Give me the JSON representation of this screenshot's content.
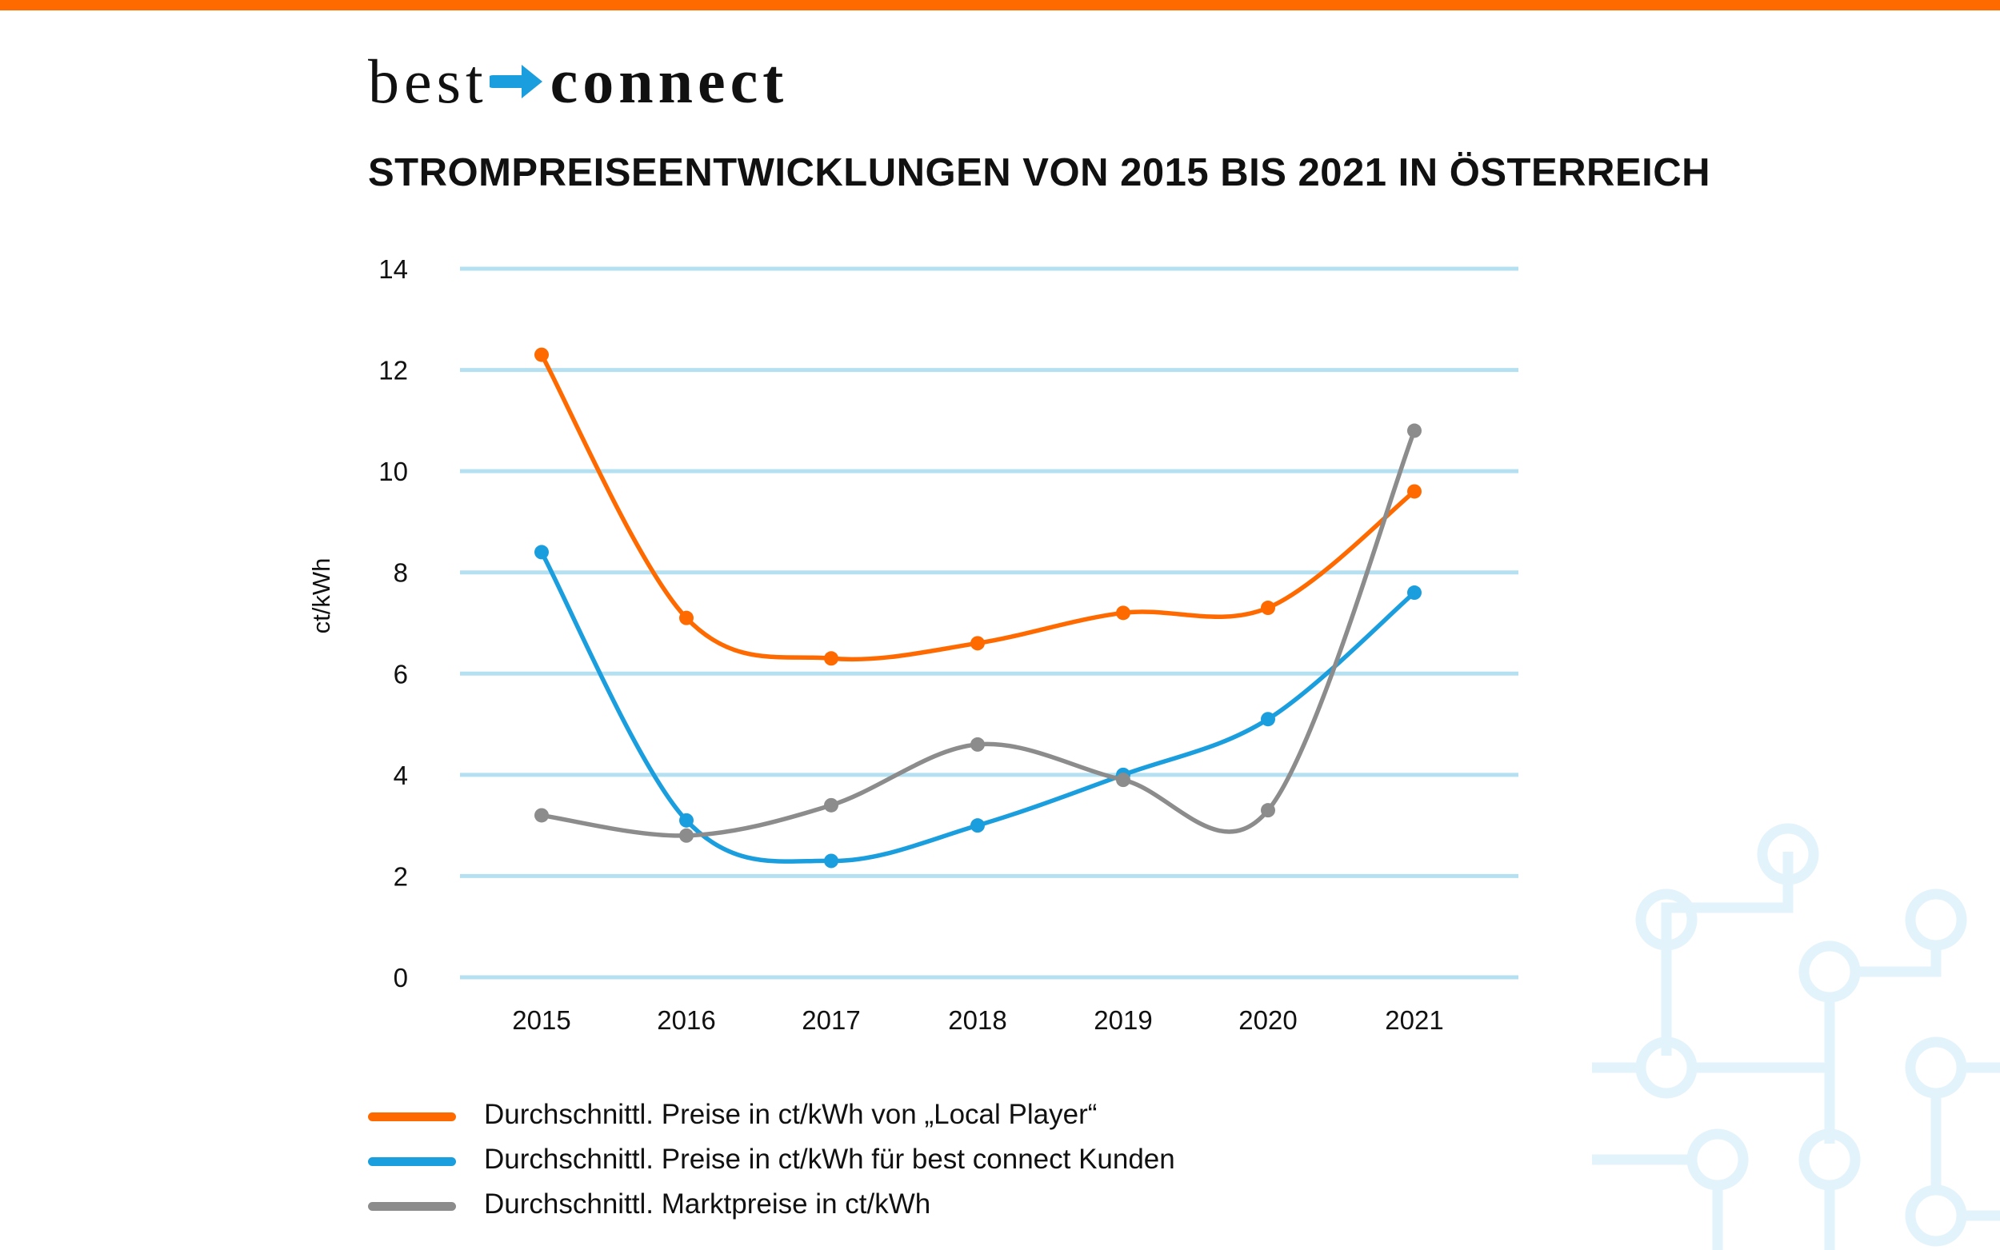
{
  "brand": {
    "word1": "best",
    "word2": "connect",
    "arrow_icon": "arrow-right-icon",
    "accent_color": "#ff6a00",
    "arrow_color": "#1a9ede"
  },
  "title": "STROMPREISEENTWICKLUNGEN VON 2015 BIS 2021 IN ÖSTERREICH",
  "chart_data": {
    "type": "line",
    "title": "STROMPREISEENTWICKLUNGEN VON 2015 BIS 2021 IN ÖSTERREICH",
    "xlabel": "",
    "ylabel": "ct/kWh",
    "categories": [
      "2015",
      "2016",
      "2017",
      "2018",
      "2019",
      "2020",
      "2021"
    ],
    "ylim": [
      0,
      14
    ],
    "yticks": [
      0,
      2,
      4,
      6,
      8,
      10,
      12,
      14
    ],
    "grid": true,
    "grid_color": "#b5e0f1",
    "legend_position": "bottom",
    "series": [
      {
        "name": "Durchschnittl. Preise in ct/kWh von „Local Player“",
        "color": "#ff6a00",
        "values": [
          12.3,
          7.1,
          6.3,
          6.6,
          7.2,
          7.3,
          9.6
        ]
      },
      {
        "name": "Durchschnittl. Preise in ct/kWh für best connect Kunden",
        "color": "#1a9ede",
        "values": [
          8.4,
          3.1,
          2.3,
          3.0,
          4.0,
          5.1,
          7.6
        ]
      },
      {
        "name": "Durchschnittl. Marktpreise in ct/kWh",
        "color": "#8c8c8c",
        "values": [
          3.2,
          2.8,
          3.4,
          4.6,
          3.9,
          3.3,
          10.8
        ]
      }
    ]
  },
  "decoration": {
    "icon": "circuit-pattern-icon",
    "color": "#e3f3fb"
  }
}
